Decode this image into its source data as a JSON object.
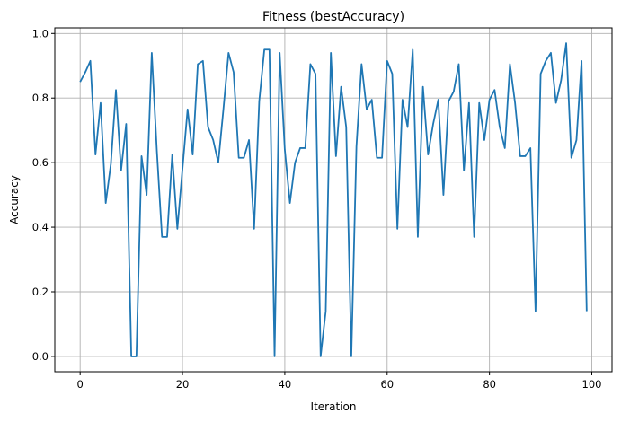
{
  "chart_data": {
    "type": "line",
    "title": "Fitness (bestAccuracy)",
    "xlabel": "Iteration",
    "ylabel": "Accuracy",
    "xlim": [
      -4.95,
      103.95
    ],
    "ylim": [
      -0.0475,
      1.0175
    ],
    "xticks": [
      0,
      20,
      40,
      60,
      80,
      100
    ],
    "yticks": [
      0.0,
      0.2,
      0.4,
      0.6,
      0.8,
      1.0
    ],
    "xtick_labels": [
      "0",
      "20",
      "40",
      "60",
      "80",
      "100"
    ],
    "ytick_labels": [
      "0.0",
      "0.2",
      "0.4",
      "0.6",
      "0.8",
      "1.0"
    ],
    "grid": true,
    "color": "#1f77b4",
    "series": [
      {
        "x": [
          0,
          1,
          2,
          3,
          4,
          5,
          6,
          7,
          8,
          9,
          10,
          11,
          12,
          13,
          14,
          15,
          16,
          17,
          18,
          19,
          20,
          21,
          22,
          23,
          24,
          25,
          26,
          27,
          28,
          29,
          30,
          31,
          32,
          33,
          34,
          35,
          36,
          37,
          38,
          39,
          40,
          41,
          42,
          43,
          44,
          45,
          46,
          47,
          48,
          49,
          50,
          51,
          52,
          53,
          54,
          55,
          56,
          57,
          58,
          59,
          60,
          61,
          62,
          63,
          64,
          65,
          66,
          67,
          68,
          69,
          70,
          71,
          72,
          73,
          74,
          75,
          76,
          77,
          78,
          79,
          80,
          81,
          82,
          83,
          84,
          85,
          86,
          87,
          88,
          89,
          90,
          91,
          92,
          93,
          94,
          95,
          96,
          97,
          98,
          99
        ],
        "values": [
          0.85,
          0.88,
          0.915,
          0.625,
          0.785,
          0.475,
          0.595,
          0.825,
          0.575,
          0.72,
          0.0,
          0.0,
          0.62,
          0.5,
          0.94,
          0.635,
          0.37,
          0.37,
          0.625,
          0.395,
          0.58,
          0.765,
          0.625,
          0.905,
          0.915,
          0.71,
          0.67,
          0.6,
          0.765,
          0.94,
          0.88,
          0.615,
          0.615,
          0.67,
          0.395,
          0.79,
          0.95,
          0.95,
          0.0,
          0.94,
          0.64,
          0.475,
          0.6,
          0.645,
          0.645,
          0.905,
          0.875,
          0.0,
          0.14,
          0.94,
          0.62,
          0.835,
          0.71,
          0.0,
          0.65,
          0.905,
          0.765,
          0.795,
          0.615,
          0.615,
          0.915,
          0.875,
          0.395,
          0.795,
          0.71,
          0.95,
          0.37,
          0.835,
          0.625,
          0.72,
          0.795,
          0.5,
          0.79,
          0.82,
          0.905,
          0.575,
          0.785,
          0.37,
          0.785,
          0.67,
          0.795,
          0.825,
          0.71,
          0.645,
          0.905,
          0.785,
          0.62,
          0.62,
          0.645,
          0.14,
          0.875,
          0.915,
          0.94,
          0.785,
          0.855,
          0.97,
          0.615,
          0.67,
          0.915,
          0.14
        ]
      }
    ]
  }
}
